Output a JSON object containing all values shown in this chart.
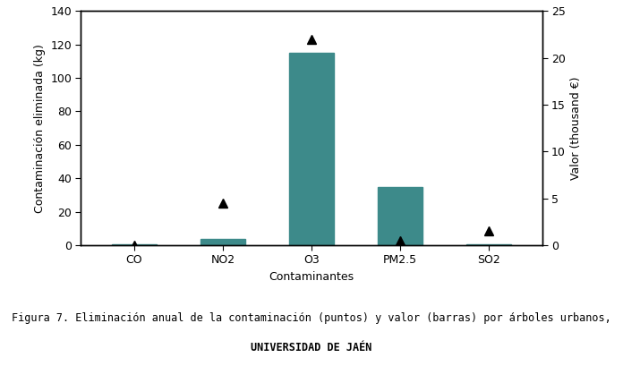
{
  "categories": [
    "CO",
    "NO2",
    "O3",
    "PM2.5",
    "SO2"
  ],
  "bar_values": [
    0.3,
    3.5,
    115.0,
    35.0,
    0.5
  ],
  "point_values_right": [
    0.05,
    4.5,
    22.0,
    0.5,
    1.5
  ],
  "bar_color": "#3d8a8a",
  "point_color": "#000000",
  "bar_ylim": [
    0,
    140
  ],
  "bar_yticks": [
    0,
    20,
    40,
    60,
    80,
    100,
    120,
    140
  ],
  "right_ylim": [
    0,
    25
  ],
  "right_yticks": [
    0,
    5,
    10,
    15,
    20,
    25
  ],
  "xlabel": "Contaminantes",
  "ylabel_left": "Contaminación eliminada (kg)",
  "ylabel_right": "Valor (thousand €)",
  "caption_line1": "Figura 7. Eliminación anual de la contaminación (puntos) y valor (barras) por árboles urbanos,",
  "caption_line2": "UNIVERSIDAD DE JAÉN",
  "bg_color": "#ffffff",
  "bar_width": 0.5,
  "figsize": [
    6.96,
    4.09
  ],
  "dpi": 100
}
